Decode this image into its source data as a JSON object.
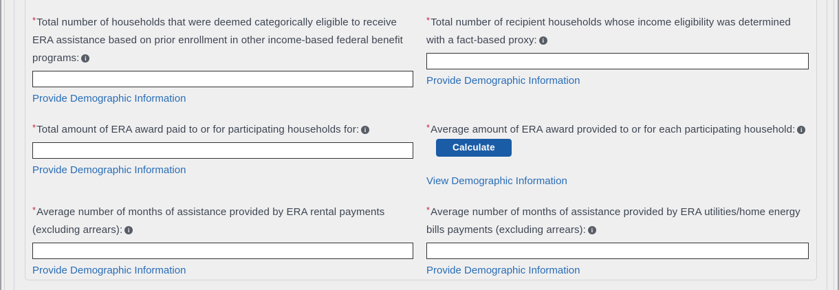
{
  "theme": {
    "accent_blue": "#1a5ca6",
    "link_blue": "#2a6db5",
    "label_color": "#3d4551",
    "required_red": "#c32441",
    "info_gray": "#575d65",
    "panel_bg": "#efeff0",
    "panel_border": "#d5d5d7"
  },
  "required_marker": "*",
  "info_icon_glyph": "i",
  "fields": [
    {
      "label": "Total number of households that were deemed categorically eligible to receive ERA assistance based on prior enrollment in other income-based federal benefit programs:",
      "value": "",
      "link": "Provide Demographic Information"
    },
    {
      "label": "Total number of recipient households whose income eligibility was determined with a fact-based proxy:",
      "value": "",
      "link": "Provide Demographic Information"
    },
    {
      "label": "Total amount of ERA award paid to or for participating households for:",
      "value": "",
      "link": "Provide Demographic Information"
    },
    {
      "label": "Average amount of ERA award provided to or for each participating household:",
      "button": "Calculate",
      "link": "View Demographic Information"
    },
    {
      "label": "Average number of months of assistance provided by ERA rental payments (excluding arrears):",
      "value": "",
      "link": "Provide Demographic Information"
    },
    {
      "label": "Average number of months of assistance provided by ERA utilities/home energy bills payments (excluding arrears):",
      "value": "",
      "link": "Provide Demographic Information"
    }
  ]
}
